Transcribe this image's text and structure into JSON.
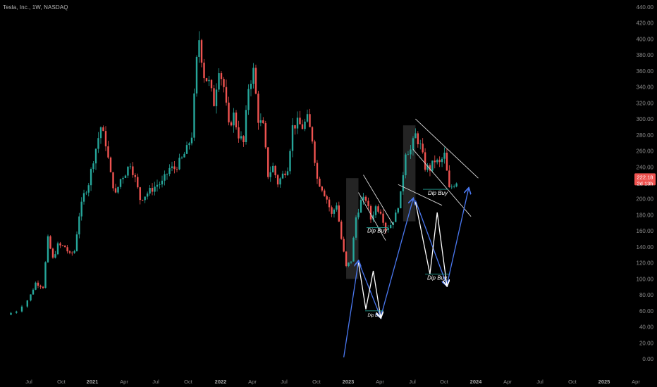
{
  "header": {
    "title": "Tesla, Inc., 1W, NASDAQ"
  },
  "colors": {
    "background": "#000000",
    "up": "#26a69a",
    "down": "#ef5350",
    "channel": "#d9d9d9",
    "projection_blue": "#4a78f0",
    "projection_white": "#ffffff",
    "zone": "#2a2a2a",
    "price_tag": "#ef5350"
  },
  "chart_data": {
    "type": "candlestick",
    "symbol": "Tesla, Inc.",
    "interval": "1W",
    "exchange": "NASDAQ",
    "y_axis": {
      "side": "right",
      "ylim": [
        0,
        440
      ],
      "ticks": [
        "0.00",
        "20.00",
        "40.00",
        "60.00",
        "80.00",
        "100.00",
        "120.00",
        "140.00",
        "160.00",
        "180.00",
        "200.00",
        "220.00",
        "240.00",
        "260.00",
        "280.00",
        "300.00",
        "320.00",
        "340.00",
        "360.00",
        "380.00",
        "400.00",
        "420.00",
        "440.00"
      ]
    },
    "x_axis": {
      "labels": [
        {
          "label": "Jul",
          "bold": false
        },
        {
          "label": "Oct",
          "bold": false
        },
        {
          "label": "2021",
          "bold": true
        },
        {
          "label": "Apr",
          "bold": false
        },
        {
          "label": "Jul",
          "bold": false
        },
        {
          "label": "Oct",
          "bold": false
        },
        {
          "label": "2022",
          "bold": true
        },
        {
          "label": "Apr",
          "bold": false
        },
        {
          "label": "Jul",
          "bold": false
        },
        {
          "label": "Oct",
          "bold": false
        },
        {
          "label": "2023",
          "bold": true
        },
        {
          "label": "Apr",
          "bold": false
        },
        {
          "label": "Jul",
          "bold": false
        },
        {
          "label": "Oct",
          "bold": false
        },
        {
          "label": "2024",
          "bold": true
        },
        {
          "label": "Apr",
          "bold": false
        },
        {
          "label": "Jul",
          "bold": false
        },
        {
          "label": "Oct",
          "bold": false
        },
        {
          "label": "2025",
          "bold": true
        },
        {
          "label": "Apr",
          "bold": false
        }
      ]
    },
    "price_tags": {
      "last": "222.18",
      "countdown": "2d 13h"
    },
    "close_path": [
      [
        "2020-06-01",
        55
      ],
      [
        "2020-06-15",
        60
      ],
      [
        "2020-07-06",
        80
      ],
      [
        "2020-07-20",
        95
      ],
      [
        "2020-08-10",
        90
      ],
      [
        "2020-08-24",
        150
      ],
      [
        "2020-09-07",
        125
      ],
      [
        "2020-09-21",
        142
      ],
      [
        "2020-10-12",
        140
      ],
      [
        "2020-10-26",
        130
      ],
      [
        "2020-11-09",
        135
      ],
      [
        "2020-11-23",
        180
      ],
      [
        "2020-12-07",
        205
      ],
      [
        "2020-12-21",
        220
      ],
      [
        "2021-01-04",
        250
      ],
      [
        "2021-01-25",
        290
      ],
      [
        "2021-02-08",
        270
      ],
      [
        "2021-02-22",
        230
      ],
      [
        "2021-03-08",
        205
      ],
      [
        "2021-03-22",
        225
      ],
      [
        "2021-04-05",
        233
      ],
      [
        "2021-04-19",
        245
      ],
      [
        "2021-05-03",
        225
      ],
      [
        "2021-05-17",
        200
      ],
      [
        "2021-06-01",
        205
      ],
      [
        "2021-06-14",
        210
      ],
      [
        "2021-07-05",
        218
      ],
      [
        "2021-07-19",
        220
      ],
      [
        "2021-08-09",
        238
      ],
      [
        "2021-08-23",
        238
      ],
      [
        "2021-09-13",
        250
      ],
      [
        "2021-09-27",
        262
      ],
      [
        "2021-10-11",
        280
      ],
      [
        "2021-10-25",
        372
      ],
      [
        "2021-11-01",
        400
      ],
      [
        "2021-11-15",
        355
      ],
      [
        "2021-11-29",
        345
      ],
      [
        "2021-12-13",
        320
      ],
      [
        "2021-12-27",
        365
      ],
      [
        "2022-01-10",
        340
      ],
      [
        "2022-01-24",
        290
      ],
      [
        "2022-02-07",
        305
      ],
      [
        "2022-02-21",
        280
      ],
      [
        "2022-03-07",
        270
      ],
      [
        "2022-03-21",
        340
      ],
      [
        "2022-04-04",
        360
      ],
      [
        "2022-04-18",
        300
      ],
      [
        "2022-05-02",
        290
      ],
      [
        "2022-05-16",
        230
      ],
      [
        "2022-05-30",
        240
      ],
      [
        "2022-06-13",
        220
      ],
      [
        "2022-06-27",
        230
      ],
      [
        "2022-07-11",
        240
      ],
      [
        "2022-07-25",
        290
      ],
      [
        "2022-08-08",
        295
      ],
      [
        "2022-08-22",
        290
      ],
      [
        "2022-09-05",
        300
      ],
      [
        "2022-09-19",
        275
      ],
      [
        "2022-10-03",
        225
      ],
      [
        "2022-10-17",
        214
      ],
      [
        "2022-10-31",
        200
      ],
      [
        "2022-11-14",
        180
      ],
      [
        "2022-11-28",
        194
      ],
      [
        "2022-12-12",
        150
      ],
      [
        "2022-12-26",
        115
      ],
      [
        "2023-01-09",
        123
      ],
      [
        "2023-01-23",
        177
      ],
      [
        "2023-02-06",
        197
      ],
      [
        "2023-02-20",
        200
      ],
      [
        "2023-03-06",
        175
      ],
      [
        "2023-03-20",
        190
      ],
      [
        "2023-04-03",
        185
      ],
      [
        "2023-04-17",
        163
      ],
      [
        "2023-05-01",
        168
      ],
      [
        "2023-05-15",
        180
      ],
      [
        "2023-05-29",
        205
      ],
      [
        "2023-06-12",
        260
      ],
      [
        "2023-06-26",
        261
      ],
      [
        "2023-07-10",
        280
      ],
      [
        "2023-07-24",
        266
      ],
      [
        "2023-08-07",
        240
      ],
      [
        "2023-08-21",
        238
      ],
      [
        "2023-09-04",
        248
      ],
      [
        "2023-09-18",
        244
      ],
      [
        "2023-10-02",
        255
      ],
      [
        "2023-10-16",
        212
      ],
      [
        "2023-10-30",
        219
      ],
      [
        "2023-11-06",
        222
      ]
    ],
    "annotations": {
      "texts": [
        "Dip Buy",
        "Dip Buy",
        "Dip Buy",
        "Dip Buy"
      ],
      "trend_lines": [
        {
          "from": [
            "2023-01-30",
            208
          ],
          "to": [
            "2023-04-17",
            148
          ]
        },
        {
          "from": [
            "2023-02-13",
            230
          ],
          "to": [
            "2023-05-08",
            168
          ]
        },
        {
          "from": [
            "2023-05-22",
            218
          ],
          "to": [
            "2023-09-25",
            192
          ]
        },
        {
          "from": [
            "2023-07-10",
            300
          ],
          "to": [
            "2024-01-08",
            226
          ]
        },
        {
          "from": [
            "2023-07-03",
            262
          ],
          "to": [
            "2023-12-18",
            178
          ]
        }
      ],
      "zones": [
        {
          "x0": "2022-12-26",
          "x1": "2023-01-30",
          "y0": 100,
          "y1": 226
        },
        {
          "x0": "2023-06-05",
          "x1": "2023-07-10",
          "y0": 172,
          "y1": 292
        }
      ],
      "blue_path_1": [
        [
          "2022-12-19",
          2
        ],
        [
          "2023-01-30",
          122
        ],
        [
          "2023-04-03",
          52
        ],
        [
          "2023-07-03",
          200
        ]
      ],
      "white_path_1": [
        [
          "2023-01-30",
          120
        ],
        [
          "2023-02-20",
          62
        ],
        [
          "2023-03-13",
          110
        ],
        [
          "2023-04-03",
          52
        ]
      ],
      "blue_path_2": [
        [
          "2023-07-10",
          198
        ],
        [
          "2023-10-09",
          92
        ],
        [
          "2023-12-11",
          213
        ]
      ],
      "white_path_2": [
        [
          "2023-07-10",
          196
        ],
        [
          "2023-08-21",
          106
        ],
        [
          "2023-09-11",
          183
        ],
        [
          "2023-10-09",
          92
        ]
      ]
    }
  }
}
